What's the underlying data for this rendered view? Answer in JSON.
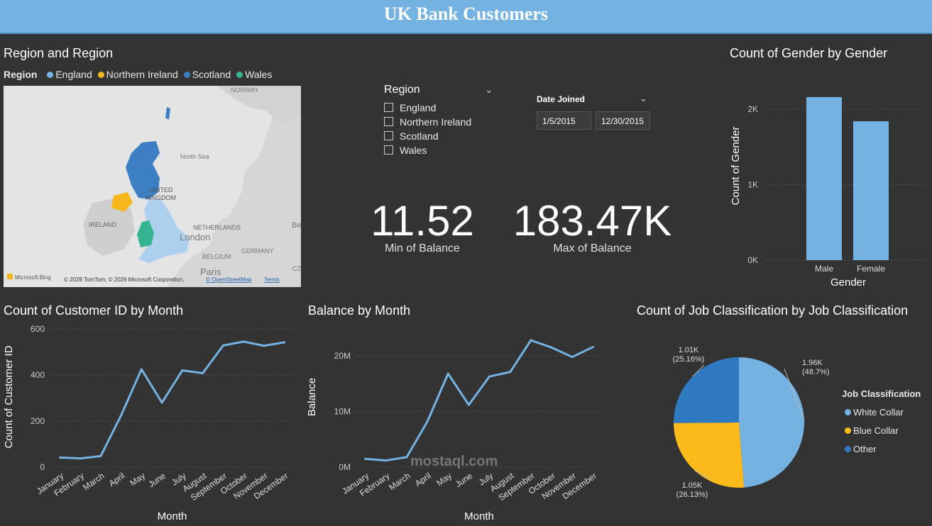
{
  "header": {
    "title": "UK Bank Customers"
  },
  "map_visual": {
    "title": "Region and Region",
    "legend_label": "Region",
    "legend_items": [
      {
        "label": "England",
        "color": "#74b2e2"
      },
      {
        "label": "Northern Ireland",
        "color": "#f5b71b"
      },
      {
        "label": "Scotland",
        "color": "#3c7fc4"
      },
      {
        "label": "Wales",
        "color": "#35b58f"
      }
    ],
    "map_labels": {
      "norway": "NORWAY",
      "north_sea": "North Sea",
      "uk": "UNITED",
      "kingdom": "KINGDOM",
      "ireland": "IRELAND",
      "netherlands": "NETHERLANDS",
      "london": "London",
      "belgium": "BELGIUM",
      "germany": "GERMANY",
      "paris": "Paris",
      "be": "Be",
      "cz": "CZ"
    },
    "attribution": "© 2028 TomTom, © 2026 Microsoft Corporation,",
    "osm": "© OpenStreetMap",
    "terms": "Terms",
    "bing": "Microsoft Bing"
  },
  "region_slicer": {
    "title": "Region",
    "items": [
      "England",
      "Northern Ireland",
      "Scotland",
      "Wales"
    ]
  },
  "date_slicer": {
    "title": "Date Joined",
    "from": "1/5/2015",
    "to": "12/30/2015"
  },
  "kpis": {
    "min": {
      "value": "11.52",
      "label": "Min of Balance"
    },
    "max": {
      "value": "183.47K",
      "label": "Max of Balance"
    }
  },
  "charts": {
    "gender": {
      "title": "Count of Gender by Gender",
      "chart_data": {
        "type": "bar",
        "categories": [
          "Male",
          "Female"
        ],
        "values": [
          2160,
          1840
        ],
        "xlabel": "Gender",
        "ylabel": "Count of Gender",
        "ylim": [
          0,
          2000
        ],
        "yticks": [
          "0K",
          "1K",
          "2K"
        ],
        "color": "#74b2e2"
      }
    },
    "customers": {
      "title": "Count of Customer ID by Month",
      "chart_data": {
        "type": "line",
        "categories": [
          "January",
          "February",
          "March",
          "April",
          "May",
          "June",
          "July",
          "August",
          "September",
          "October",
          "November",
          "December"
        ],
        "values": [
          42,
          38,
          48,
          225,
          425,
          280,
          420,
          408,
          528,
          545,
          527,
          542
        ],
        "xlabel": "Month",
        "ylabel": "Count of Customer ID",
        "ylim": [
          0,
          600
        ],
        "yticks": [
          "0",
          "200",
          "400",
          "600"
        ],
        "color": "#74b2e2"
      }
    },
    "balance": {
      "title": "Balance by Month",
      "chart_data": {
        "type": "line",
        "categories": [
          "January",
          "February",
          "March",
          "April",
          "May",
          "June",
          "July",
          "August",
          "September",
          "October",
          "November",
          "December"
        ],
        "values": [
          1.5,
          1.2,
          1.8,
          8.2,
          16.8,
          11.2,
          16.3,
          17.1,
          22.8,
          21.5,
          19.8,
          21.6
        ],
        "xlabel": "Month",
        "ylabel": "Balance",
        "ylim": [
          0,
          20
        ],
        "yticks": [
          "0M",
          "10M",
          "20M"
        ],
        "color": "#74b2e2"
      }
    },
    "job": {
      "title": "Count of Job Classification by Job Classification",
      "chart_data": {
        "type": "pie",
        "legend_title": "Job Classification",
        "slices": [
          {
            "name": "White Collar",
            "value": 1960,
            "label": "1.96K",
            "pct": "(48.7%)",
            "color": "#74b2e2"
          },
          {
            "name": "Blue Collar",
            "value": 1050,
            "label": "1.05K",
            "pct": "(26.13%)",
            "color": "#fbb91a"
          },
          {
            "name": "Other",
            "value": 1010,
            "label": "1.01K",
            "pct": "(25.16%)",
            "color": "#2f79c0"
          }
        ]
      }
    }
  },
  "watermark": "mostaql.com"
}
